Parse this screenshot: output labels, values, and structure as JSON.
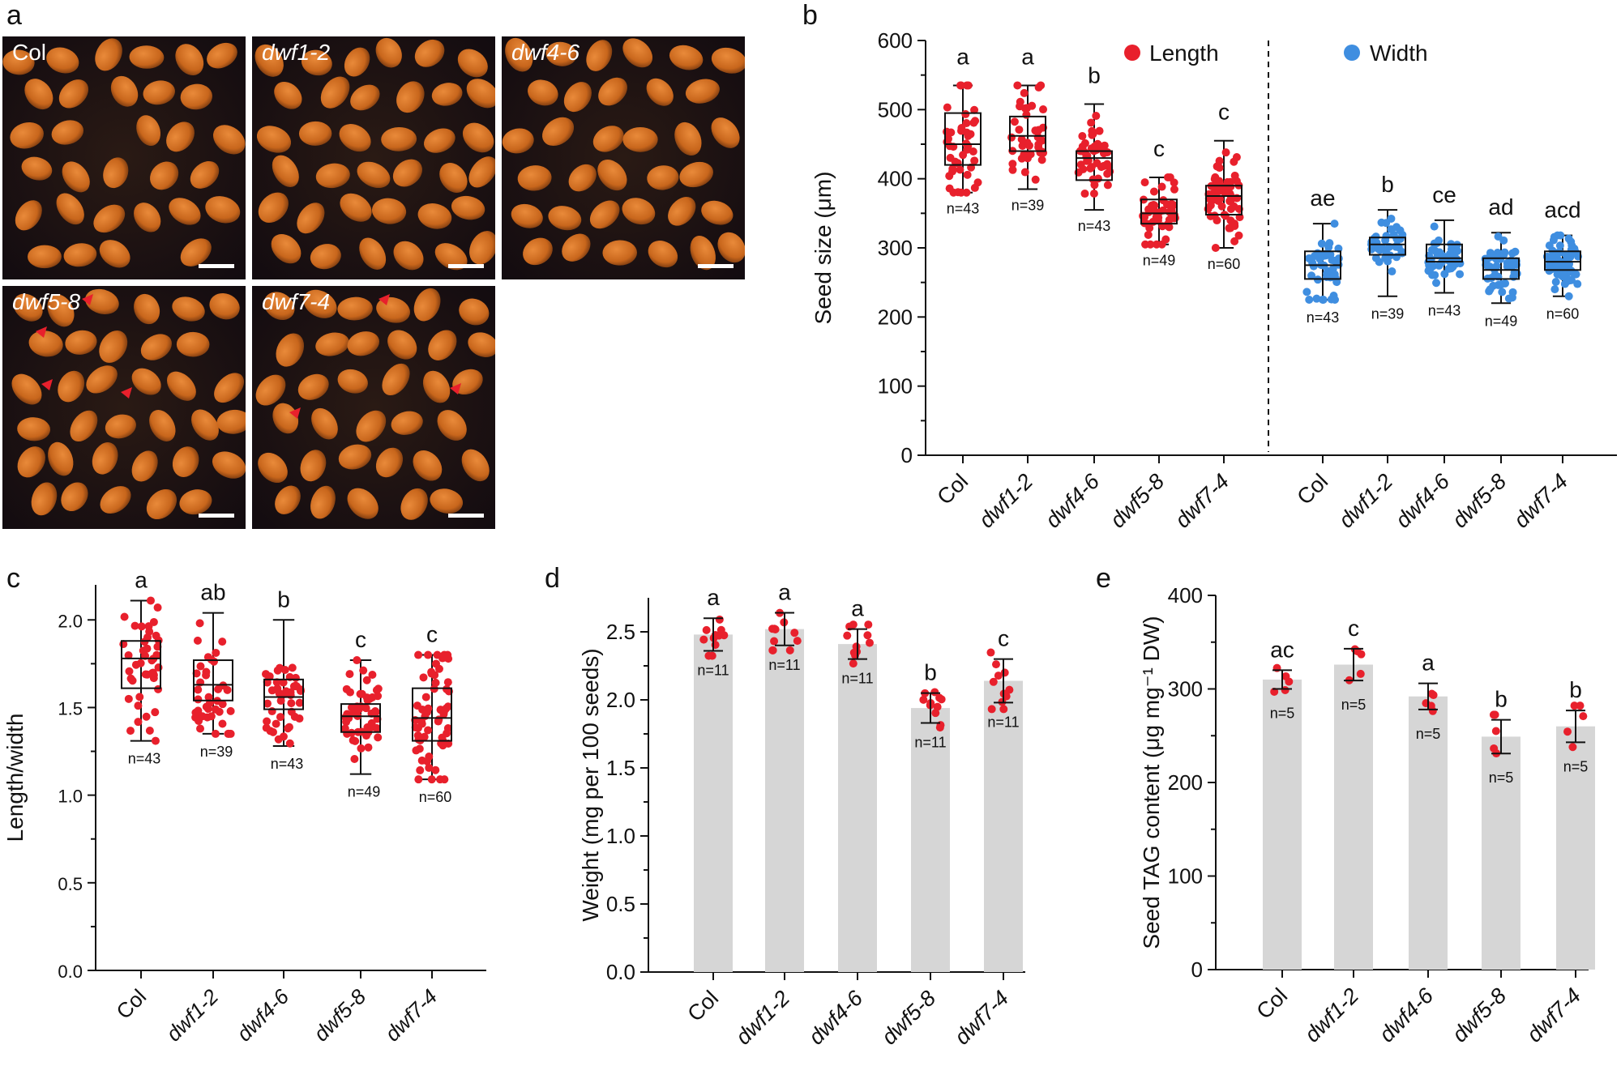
{
  "panels": {
    "a": "a",
    "b": "b",
    "c": "c",
    "d": "d",
    "e": "e"
  },
  "photos": [
    {
      "label": "Col",
      "italic": false,
      "arrowheads": 0
    },
    {
      "label": "dwf1-2",
      "italic": true,
      "arrowheads": 0
    },
    {
      "label": "dwf4-6",
      "italic": true,
      "arrowheads": 0
    },
    {
      "label": "dwf5-8",
      "italic": true,
      "arrowheads": 4
    },
    {
      "label": "dwf7-4",
      "italic": true,
      "arrowheads": 3
    }
  ],
  "colors": {
    "red": "#e8202c",
    "blue": "#3f8ee0",
    "bar": "#d6d6d6",
    "seed": "#c8661c",
    "seed_dark": "#7a3a10",
    "arrow": "#e8202c"
  },
  "chart_data": [
    {
      "id": "b",
      "type": "box",
      "ylabel": "Seed size (μm)",
      "ylim": [
        0,
        600
      ],
      "yticks": [
        "0",
        "100",
        "200",
        "300",
        "400",
        "500",
        "600"
      ],
      "legend": {
        "length": "Length",
        "width": "Width"
      },
      "categories": [
        "Col",
        "dwf1-2",
        "dwf4-6",
        "dwf5-8",
        "dwf7-4",
        "Col",
        "dwf1-2",
        "dwf4-6",
        "dwf5-8",
        "dwf7-4"
      ],
      "series": [
        {
          "name": "Length",
          "color": "red",
          "groups": [
            {
              "min": 380,
              "q1": 420,
              "median": 450,
              "q3": 495,
              "max": 535,
              "n": 43,
              "n_label": "n=43",
              "letter": "a"
            },
            {
              "min": 385,
              "q1": 440,
              "median": 462,
              "q3": 490,
              "max": 535,
              "n": 39,
              "n_label": "n=39",
              "letter": "a"
            },
            {
              "min": 355,
              "q1": 398,
              "median": 430,
              "q3": 440,
              "max": 508,
              "n": 43,
              "n_label": "n=43",
              "letter": "b"
            },
            {
              "min": 305,
              "q1": 335,
              "median": 350,
              "q3": 370,
              "max": 402,
              "n": 49,
              "n_label": "n=49",
              "letter": "c"
            },
            {
              "min": 300,
              "q1": 348,
              "median": 375,
              "q3": 390,
              "max": 455,
              "n": 60,
              "n_label": "n=60",
              "letter": "c"
            }
          ]
        },
        {
          "name": "Width",
          "color": "blue",
          "groups": [
            {
              "min": 225,
              "q1": 255,
              "median": 275,
              "q3": 295,
              "max": 335,
              "n": 43,
              "n_label": "n=43",
              "letter": "ae"
            },
            {
              "min": 230,
              "q1": 290,
              "median": 305,
              "q3": 315,
              "max": 355,
              "n": 39,
              "n_label": "n=39",
              "letter": "b"
            },
            {
              "min": 235,
              "q1": 280,
              "median": 285,
              "q3": 305,
              "max": 340,
              "n": 43,
              "n_label": "n=43",
              "letter": "ce"
            },
            {
              "min": 220,
              "q1": 255,
              "median": 268,
              "q3": 285,
              "max": 322,
              "n": 49,
              "n_label": "n=49",
              "letter": "ad"
            },
            {
              "min": 230,
              "q1": 268,
              "median": 280,
              "q3": 295,
              "max": 318,
              "n": 60,
              "n_label": "n=60",
              "letter": "acd"
            }
          ]
        }
      ]
    },
    {
      "id": "c",
      "type": "box",
      "ylabel": "Length/width",
      "ylim": [
        0,
        2.2
      ],
      "yticks": [
        "0.0",
        "0.5",
        "1.0",
        "1.5",
        "2.0"
      ],
      "categories": [
        "Col",
        "dwf1-2",
        "dwf4-6",
        "dwf5-8",
        "dwf7-4"
      ],
      "series": [
        {
          "name": "",
          "color": "red",
          "groups": [
            {
              "min": 1.31,
              "q1": 1.61,
              "median": 1.78,
              "q3": 1.88,
              "max": 2.11,
              "n": 43,
              "n_label": "n=43",
              "letter": "a"
            },
            {
              "min": 1.35,
              "q1": 1.54,
              "median": 1.63,
              "q3": 1.77,
              "max": 2.04,
              "n": 39,
              "n_label": "n=39",
              "letter": "ab"
            },
            {
              "min": 1.28,
              "q1": 1.49,
              "median": 1.56,
              "q3": 1.66,
              "max": 2.0,
              "n": 43,
              "n_label": "n=43",
              "letter": "b"
            },
            {
              "min": 1.12,
              "q1": 1.36,
              "median": 1.45,
              "q3": 1.52,
              "max": 1.77,
              "n": 49,
              "n_label": "n=49",
              "letter": "c"
            },
            {
              "min": 1.09,
              "q1": 1.31,
              "median": 1.44,
              "q3": 1.61,
              "max": 1.8,
              "n": 60,
              "n_label": "n=60",
              "letter": "c"
            }
          ]
        }
      ]
    },
    {
      "id": "d",
      "type": "bar",
      "ylabel": "Weight (mg per 100 seeds)",
      "ylim": [
        0,
        2.75
      ],
      "yticks": [
        "0.0",
        "0.5",
        "1.0",
        "1.5",
        "2.0",
        "2.5"
      ],
      "categories": [
        "Col",
        "dwf1-2",
        "dwf4-6",
        "dwf5-8",
        "dwf7-4"
      ],
      "series": [
        {
          "name": "",
          "color": "red",
          "groups": [
            {
              "value": 2.48,
              "sd": 0.12,
              "n": 11,
              "n_label": "n=11",
              "letter": "a"
            },
            {
              "value": 2.52,
              "sd": 0.12,
              "n": 11,
              "n_label": "n=11",
              "letter": "a"
            },
            {
              "value": 2.41,
              "sd": 0.11,
              "n": 11,
              "n_label": "n=11",
              "letter": "a"
            },
            {
              "value": 1.94,
              "sd": 0.11,
              "n": 11,
              "n_label": "n=11",
              "letter": "b"
            },
            {
              "value": 2.14,
              "sd": 0.16,
              "n": 11,
              "n_label": "n=11",
              "letter": "c"
            }
          ]
        }
      ]
    },
    {
      "id": "e",
      "type": "bar",
      "ylabel": "Seed TAG content (μg mg⁻¹ DW)",
      "ylim": [
        0,
        400
      ],
      "yticks": [
        "0",
        "100",
        "200",
        "300",
        "400"
      ],
      "categories": [
        "Col",
        "dwf1-2",
        "dwf4-6",
        "dwf5-8",
        "dwf7-4"
      ],
      "series": [
        {
          "name": "",
          "color": "red",
          "groups": [
            {
              "value": 310,
              "sd": 10,
              "n": 5,
              "n_label": "n=5",
              "letter": "ac"
            },
            {
              "value": 326,
              "sd": 17,
              "n": 5,
              "n_label": "n=5",
              "letter": "c"
            },
            {
              "value": 292,
              "sd": 14,
              "n": 5,
              "n_label": "n=5",
              "letter": "a"
            },
            {
              "value": 249,
              "sd": 18,
              "n": 5,
              "n_label": "n=5",
              "letter": "b"
            },
            {
              "value": 260,
              "sd": 17,
              "n": 5,
              "n_label": "n=5",
              "letter": "b"
            }
          ]
        }
      ]
    }
  ]
}
